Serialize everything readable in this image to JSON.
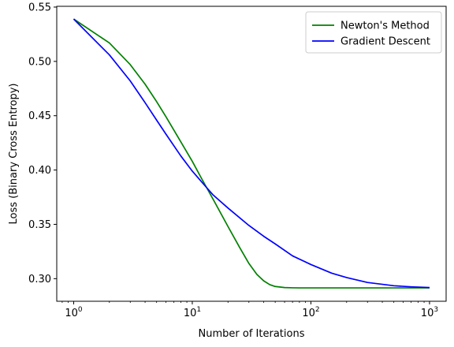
{
  "chart_data": {
    "type": "line",
    "xlabel": "Number of Iterations",
    "ylabel": "Loss (Binary Cross Entropy)",
    "xscale": "log",
    "xlim": [
      0.72,
      1380
    ],
    "ylim": [
      0.2792,
      0.5507
    ],
    "xticks": [
      {
        "value": 1,
        "base": "10",
        "exp": "0"
      },
      {
        "value": 10,
        "base": "10",
        "exp": "1"
      },
      {
        "value": 100,
        "base": "10",
        "exp": "2"
      },
      {
        "value": 1000,
        "base": "10",
        "exp": "3"
      }
    ],
    "yticks": [
      {
        "value": 0.3,
        "label": "0.30"
      },
      {
        "value": 0.35,
        "label": "0.35"
      },
      {
        "value": 0.4,
        "label": "0.40"
      },
      {
        "value": 0.45,
        "label": "0.45"
      },
      {
        "value": 0.5,
        "label": "0.50"
      },
      {
        "value": 0.55,
        "label": "0.55"
      }
    ],
    "legend": "top-right",
    "grid": false,
    "series": [
      {
        "name": "Newton's Method",
        "color": "#008000",
        "x": [
          1,
          2,
          3,
          4,
          5,
          6,
          8,
          10,
          12,
          15,
          20,
          25,
          30,
          35,
          40,
          45,
          50,
          60,
          70,
          80,
          100,
          150,
          200,
          300,
          500,
          1000
        ],
        "y": [
          0.539,
          0.517,
          0.497,
          0.479,
          0.463,
          0.449,
          0.426,
          0.408,
          0.392,
          0.373,
          0.348,
          0.329,
          0.314,
          0.304,
          0.298,
          0.2945,
          0.2928,
          0.2918,
          0.2916,
          0.2915,
          0.2915,
          0.2915,
          0.2915,
          0.2915,
          0.2915,
          0.2915
        ]
      },
      {
        "name": "Gradient Descent",
        "color": "#0000ff",
        "x": [
          1,
          2,
          3,
          4,
          5,
          6,
          8,
          10,
          12,
          15,
          20,
          30,
          40,
          50,
          70,
          100,
          150,
          200,
          300,
          500,
          700,
          1000
        ],
        "y": [
          0.539,
          0.506,
          0.482,
          0.462,
          0.446,
          0.433,
          0.413,
          0.399,
          0.389,
          0.377,
          0.365,
          0.349,
          0.339,
          0.332,
          0.321,
          0.313,
          0.305,
          0.301,
          0.2965,
          0.2935,
          0.2925,
          0.2918
        ]
      }
    ]
  }
}
